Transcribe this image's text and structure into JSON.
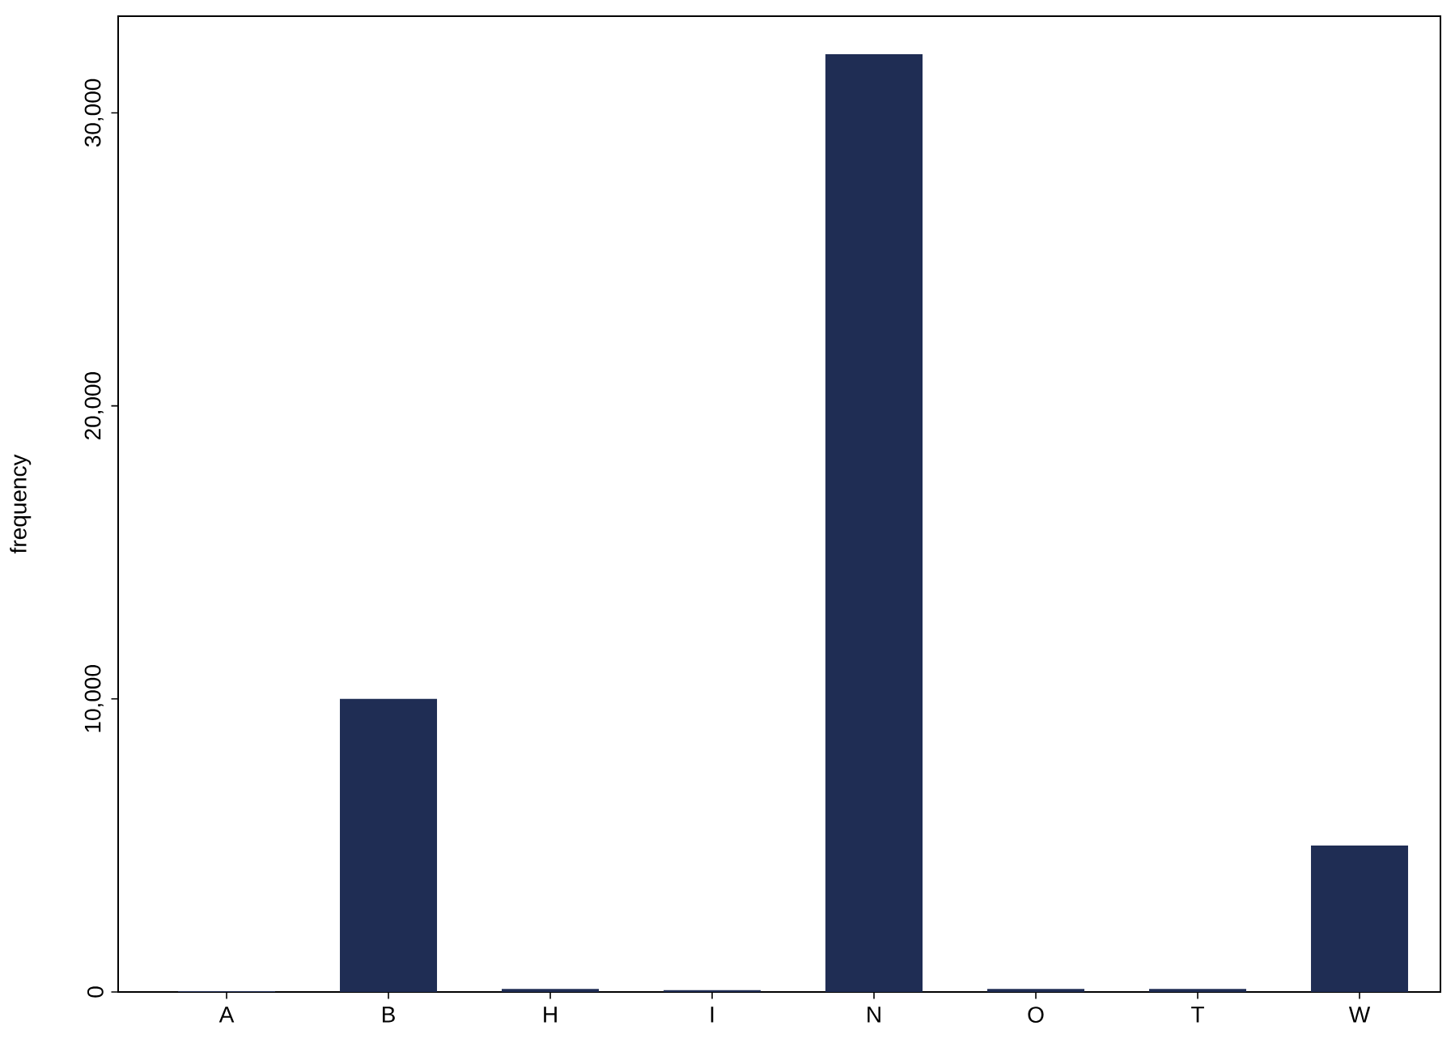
{
  "chart_data": {
    "type": "bar",
    "ylabel": "frequency",
    "categories": [
      "A",
      "B",
      "H",
      "I",
      "N",
      "O",
      "T",
      "W"
    ],
    "values": [
      30,
      10000,
      100,
      60,
      32000,
      100,
      100,
      5000
    ],
    "color": "#1f2d54",
    "ylim": [
      0,
      33300
    ],
    "yticks": [
      {
        "value": 0,
        "label": "0"
      },
      {
        "value": 10000,
        "label": "10,000"
      },
      {
        "value": 20000,
        "label": "20,000"
      },
      {
        "value": 30000,
        "label": "30,000"
      }
    ],
    "grid": false
  }
}
